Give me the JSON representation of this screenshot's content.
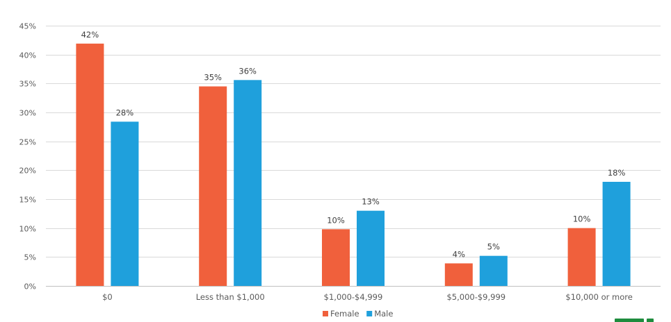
{
  "chart_data": {
    "type": "bar",
    "title": "",
    "xlabel": "",
    "ylabel": "",
    "ylim": [
      0,
      45
    ],
    "y_tick_values": [
      0,
      5,
      10,
      15,
      20,
      25,
      30,
      35,
      40,
      45
    ],
    "y_tick_labels": [
      "0%",
      "5%",
      "10%",
      "15%",
      "20%",
      "25%",
      "30%",
      "35%",
      "40%",
      "45%"
    ],
    "grid": true,
    "legend_position": "bottom",
    "categories": [
      "$0",
      "Less than $1,000",
      "$1,000-$4,999",
      "$5,000-$9,999",
      "$10,000 or more"
    ],
    "series": [
      {
        "name": "Female",
        "color": "#f0603c",
        "values": [
          41.9,
          34.5,
          9.8,
          3.9,
          10.0
        ],
        "labels": [
          "42%",
          "35%",
          "10%",
          "4%",
          "10%"
        ]
      },
      {
        "name": "Male",
        "color": "#1fa0dc",
        "values": [
          28.4,
          35.6,
          13.0,
          5.2,
          18.0
        ],
        "labels": [
          "28%",
          "36%",
          "13%",
          "5%",
          "18%"
        ]
      }
    ]
  },
  "logo": {
    "color": "#1e8c3e",
    "name": "corner-logo-icon"
  }
}
